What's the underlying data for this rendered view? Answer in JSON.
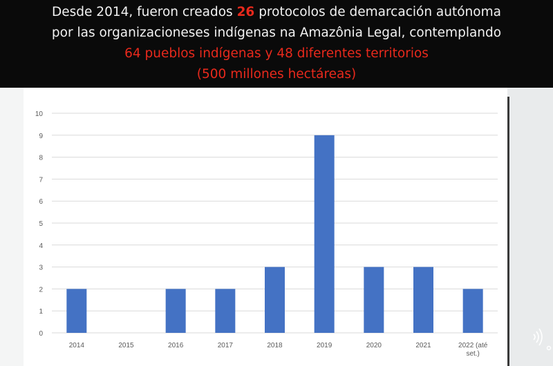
{
  "banner": {
    "line1_prefix": "Desde 2014, fueron creados ",
    "line1_number": "26",
    "line1_suffix": " protocolos de demarcación autónoma",
    "line2": "por las  organizacioneses indígenas na Amazônia Legal, contemplando",
    "line3": "64 pueblos indígenas y 48 diferentes territorios",
    "line4": "(500 millones hectáreas)"
  },
  "colors": {
    "banner_bg": "#0a0a0a",
    "highlight_red": "#e8291c",
    "bar_fill": "#4472c4",
    "grid": "#d9d9d9"
  },
  "icons": {
    "corner": "sound-wave-icon"
  },
  "chart_data": {
    "type": "bar",
    "title": "",
    "categories": [
      "2014",
      "2015",
      "2016",
      "2017",
      "2018",
      "2019",
      "2020",
      "2021",
      "2022 (até set.)"
    ],
    "category_lines": [
      [
        "2014"
      ],
      [
        "2015"
      ],
      [
        "2016"
      ],
      [
        "2017"
      ],
      [
        "2018"
      ],
      [
        "2019"
      ],
      [
        "2020"
      ],
      [
        "2021"
      ],
      [
        "2022 (até",
        "set.)"
      ]
    ],
    "values": [
      2,
      0,
      2,
      2,
      3,
      9,
      3,
      3,
      2
    ],
    "ylim": [
      0,
      10
    ],
    "yticks": [
      0,
      1,
      2,
      3,
      4,
      5,
      6,
      7,
      8,
      9,
      10
    ],
    "xlabel": "",
    "ylabel": "",
    "grid": true,
    "legend": "none"
  }
}
